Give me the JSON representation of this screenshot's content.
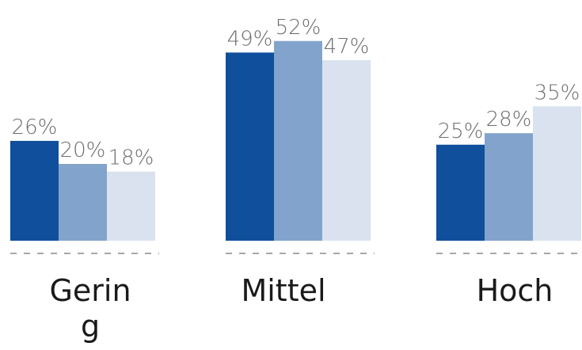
{
  "chart_data": {
    "type": "bar",
    "categories": [
      "Gerin g",
      "Mittel",
      "Hoch"
    ],
    "category_lines": [
      [
        "Gerin",
        "g"
      ],
      [
        "Mittel"
      ],
      [
        "Hoch"
      ]
    ],
    "series": [
      {
        "values": [
          26,
          49,
          25
        ],
        "color": "#0f4f9c"
      },
      {
        "values": [
          20,
          52,
          28
        ],
        "color": "#82a4cc"
      },
      {
        "values": [
          18,
          47,
          35
        ],
        "color": "#d9e2ee"
      }
    ],
    "value_labels": [
      [
        "26%",
        "49%",
        "25%"
      ],
      [
        "20%",
        "52%",
        "28%"
      ],
      [
        "18%",
        "47%",
        "35%"
      ]
    ],
    "value_suffix": "%",
    "ylim": [
      0,
      60
    ],
    "grid": false,
    "baseline_style": "dashed",
    "xlabel": "",
    "ylabel": "",
    "title": ""
  }
}
